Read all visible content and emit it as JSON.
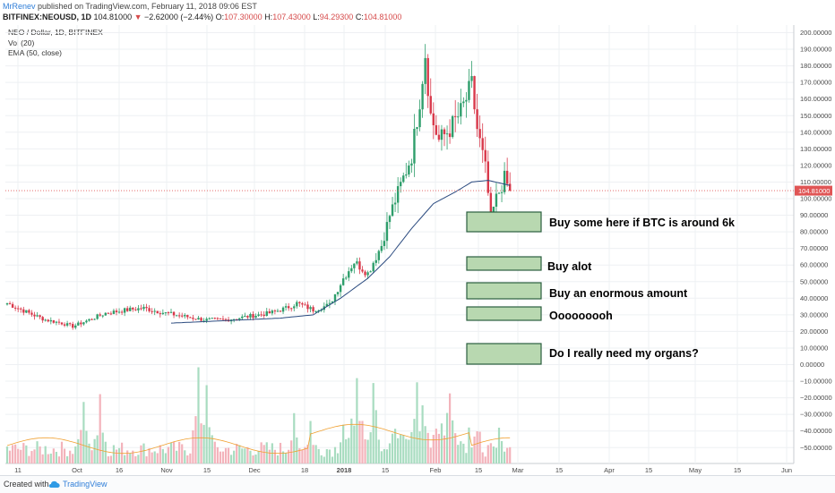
{
  "header": {
    "author": "MrRenev",
    "published_text": "published on TradingView.com, February 11, 2018 09:06 EST",
    "symbol": "BITFINEX:NEOUSD, 1D",
    "last": "104.81000",
    "change_arrow": "▼",
    "change": "−2.62000 (−2.44%)",
    "o_label": "O:",
    "o_value": "107.30000",
    "h_label": "H:",
    "h_value": "107.43000",
    "l_label": "L:",
    "l_value": "94.29300",
    "c_label": "C:",
    "c_value": "104.81000"
  },
  "legend": {
    "title": "NEO / Dollar, 1D, BITFINEX",
    "vol": "Vol (20)",
    "ema": "EMA (50, close)"
  },
  "footer": {
    "created_with": "Created with",
    "brand": "TradingView"
  },
  "colors": {
    "up": "#2e9e6b",
    "down": "#d9394b",
    "ema": "#2a4a7f",
    "vol_ma": "#f0a030",
    "note_fill": "#b8d8b0",
    "note_border": "#2b5f3f",
    "last_price_line": "#e05555",
    "grid": "#eef0f3"
  },
  "chart_data": {
    "type": "candlestick",
    "symbol": "NEOUSD",
    "timeframe": "1D",
    "exchange": "BITFINEX",
    "y_axis": {
      "ticks": [
        "200.00000",
        "190.00000",
        "180.00000",
        "170.00000",
        "160.00000",
        "150.00000",
        "140.00000",
        "130.00000",
        "120.00000",
        "110.00000",
        "100.00000",
        "90.00000",
        "80.00000",
        "70.00000",
        "60.00000",
        "50.00000",
        "40.00000",
        "30.00000",
        "20.00000",
        "10.00000",
        "0.00000",
        "−10.00000",
        "−20.00000",
        "−30.00000",
        "−40.00000",
        "−50.00000"
      ],
      "range": [
        -55,
        205
      ]
    },
    "x_axis": {
      "ticks": [
        "11",
        "Oct",
        "16",
        "Nov",
        "15",
        "Dec",
        "18",
        "2018",
        "15",
        "Feb",
        "15",
        "Mar",
        "15",
        "Apr",
        "15",
        "May",
        "15",
        "Jun"
      ]
    },
    "last_price_label": "104.81000",
    "price_anchors": [
      [
        0,
        37
      ],
      [
        8,
        31
      ],
      [
        14,
        27
      ],
      [
        20,
        25
      ],
      [
        24,
        23
      ],
      [
        30,
        27
      ],
      [
        36,
        31
      ],
      [
        44,
        33
      ],
      [
        50,
        34
      ],
      [
        58,
        31
      ],
      [
        65,
        29
      ],
      [
        72,
        27
      ],
      [
        80,
        27
      ],
      [
        88,
        29
      ],
      [
        96,
        31
      ],
      [
        102,
        34
      ],
      [
        106,
        37
      ],
      [
        112,
        33
      ],
      [
        118,
        36
      ],
      [
        123,
        52
      ],
      [
        127,
        62
      ],
      [
        132,
        55
      ],
      [
        137,
        72
      ],
      [
        140,
        90
      ],
      [
        144,
        108
      ],
      [
        148,
        126
      ],
      [
        151,
        160
      ],
      [
        153,
        188
      ],
      [
        155,
        150
      ],
      [
        158,
        135
      ],
      [
        162,
        142
      ],
      [
        166,
        152
      ],
      [
        170,
        168
      ],
      [
        172,
        142
      ],
      [
        175,
        118
      ],
      [
        177,
        88
      ],
      [
        179,
        100
      ],
      [
        182,
        112
      ],
      [
        184,
        104.81
      ]
    ],
    "ema_anchors": [
      [
        60,
        25
      ],
      [
        100,
        28
      ],
      [
        112,
        30
      ],
      [
        122,
        40
      ],
      [
        132,
        52
      ],
      [
        140,
        65
      ],
      [
        148,
        82
      ],
      [
        156,
        97
      ],
      [
        164,
        104
      ],
      [
        170,
        110
      ],
      [
        176,
        111
      ],
      [
        184,
        108
      ]
    ],
    "volume_peaks": [
      [
        28,
        0.55
      ],
      [
        34,
        0.62
      ],
      [
        70,
        0.86
      ],
      [
        73,
        0.7
      ],
      [
        105,
        0.45
      ],
      [
        111,
        0.38
      ],
      [
        128,
        0.64
      ],
      [
        134,
        0.62
      ],
      [
        150,
        0.58
      ],
      [
        152,
        0.52
      ],
      [
        162,
        0.55
      ],
      [
        180,
        0.32
      ]
    ],
    "annotations": [
      "Buy some here if BTC is around 6k",
      "Buy alot",
      "Buy an enormous amount",
      "Ooooooooh",
      "Do I really need my organs?"
    ]
  }
}
